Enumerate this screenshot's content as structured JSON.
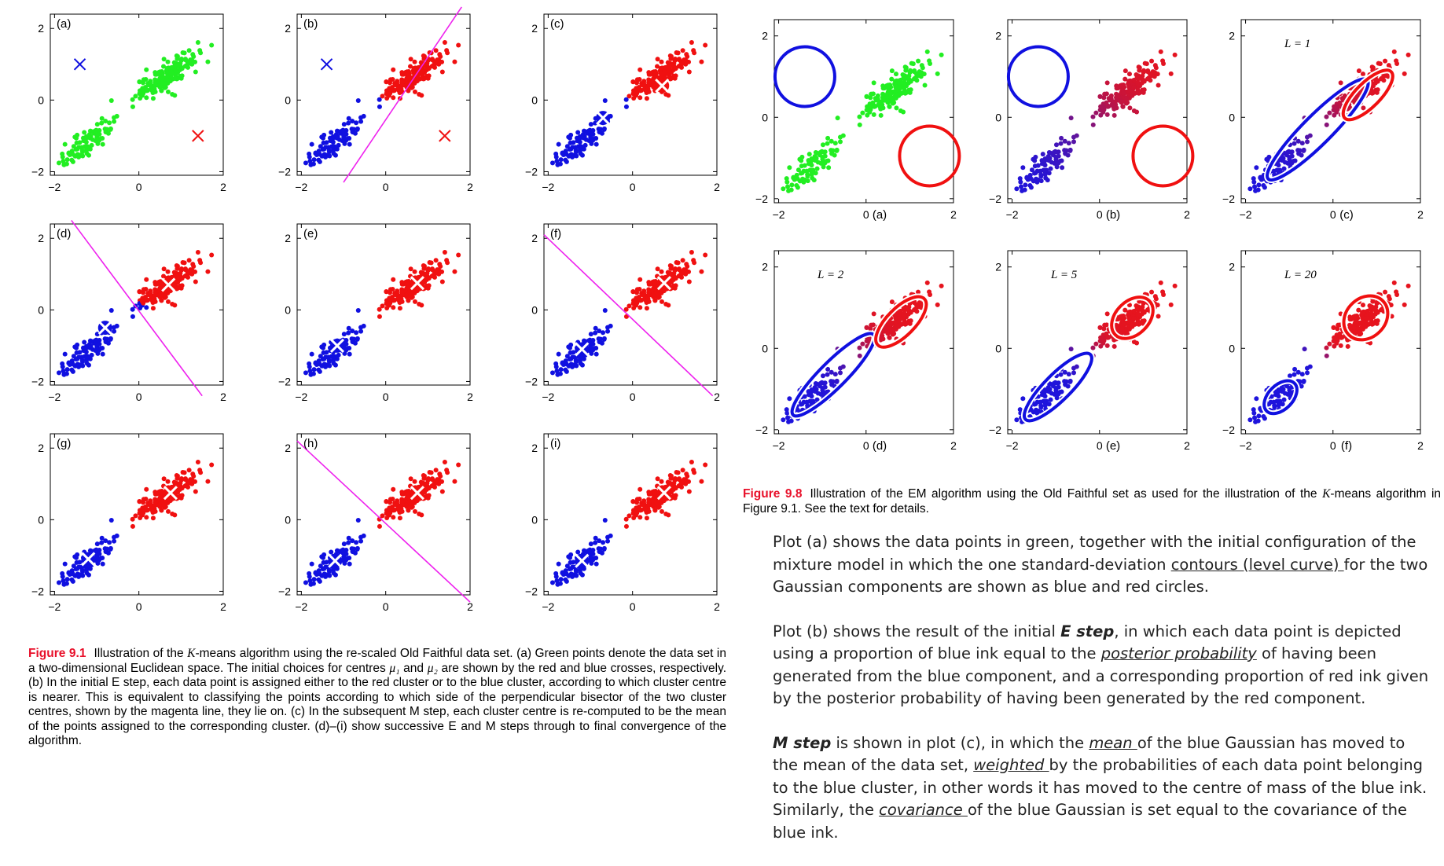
{
  "figure91": {
    "label": "Figure 9.1",
    "caption_parts": {
      "p1": "Illustration of the ",
      "k": "K",
      "p2": "-means algorithm using the re-scaled Old Faithful data set. (a) Green points denote the data set in a two-dimensional Euclidean space. The initial choices for centres ",
      "mu1": "μ₁",
      "p3": " and ",
      "mu2": "μ₂",
      "p4": " are shown by the red and blue crosses, respectively. (b) In the initial E step, each data point is assigned either to the red cluster or to the blue cluster, according to which cluster centre is nearer. This is equivalent to classifying the points according to which side of the perpendicular bisector of the two cluster centres, shown by the magenta line, they lie on. (c) In the subsequent M step, each cluster centre is re-computed to be the mean of the points assigned to the corresponding cluster. (d)–(i) show successive E and M steps through to final convergence of the algorithm."
    },
    "panel_labels": [
      "(a)",
      "(b)",
      "(c)",
      "(d)",
      "(e)",
      "(f)",
      "(g)",
      "(h)",
      "(i)"
    ]
  },
  "figure98": {
    "label": "Figure 9.8",
    "caption_parts": {
      "p1": "Illustration of the EM algorithm using the Old Faithful set as used for the illustration of the ",
      "k": "K",
      "p2": "-means algorithm in Figure 9.1. See the text for details."
    },
    "panel_labels": [
      "(a)",
      "(b)",
      "(c)",
      "(d)",
      "(e)",
      "(f)"
    ],
    "iteration_labels": [
      "",
      "",
      "L = 1",
      "L = 2",
      "L = 5",
      "L = 20"
    ]
  },
  "axis_ticks": {
    "x": [
      "−2",
      "0",
      "2"
    ],
    "y": [
      "2",
      "0",
      "−2"
    ]
  },
  "notes": {
    "para1": {
      "t1": "Plot (a) shows the data points in green, together with the initial configuration of the mixture model in which the one standard-deviation ",
      "u1": "contours  (level curve) ",
      "t2": " for the two Gaussian components are shown as blue and red circles."
    },
    "para2": {
      "t1": "Plot (b) shows the result of the initial ",
      "b1": "E step",
      "t2": ", in which each data point is depicted using a proportion of blue ink equal to the ",
      "u1": "posterior probability",
      "t3": " of having been generated from the blue component, and a corresponding proportion of red ink given by the posterior probability of having been generated by the red component."
    },
    "para3": {
      "b1": "M step",
      "t1": " is shown in plot (c), in which the ",
      "u1": "mean ",
      "t2": "of the blue Gaussian has moved to the mean of the data set, ",
      "u2": "weighted ",
      "t3": "by the probabilities of each data point belonging to the blue cluster, in other words it has moved to the centre of mass of the blue ink. Similarly, the ",
      "u3": "covariance ",
      "t4": "of the blue Gaussian is set equal to the covariance of the blue ink."
    }
  },
  "colors": {
    "green": "#22ee22",
    "blue": "#1010e0",
    "red": "#f01010",
    "magenta": "#ee22ee",
    "caption_label": "#e8102a"
  }
}
